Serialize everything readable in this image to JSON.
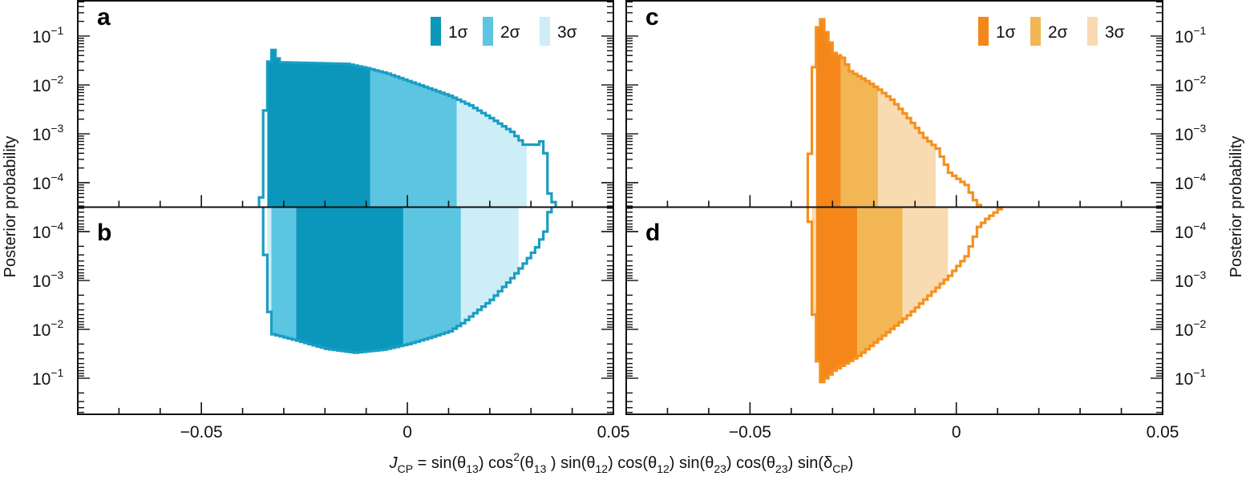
{
  "chart_data": [
    {
      "panel": "a",
      "type": "histogram",
      "yscale": "log",
      "orientation": "up",
      "xlim": [
        -0.08,
        0.05
      ],
      "ylim": [
        3e-05,
        0.5
      ],
      "bin_width": 0.001,
      "profile": [
        [
          -0.036,
          5e-05
        ],
        [
          -0.035,
          0.003
        ],
        [
          -0.034,
          0.03
        ],
        [
          -0.033,
          0.052
        ],
        [
          -0.032,
          0.035
        ],
        [
          -0.031,
          0.029
        ],
        [
          -0.015,
          0.027
        ],
        [
          -0.01,
          0.022
        ],
        [
          -0.005,
          0.017
        ],
        [
          0,
          0.012
        ],
        [
          0.005,
          0.0085
        ],
        [
          0.01,
          0.006
        ],
        [
          0.015,
          0.0038
        ],
        [
          0.02,
          0.0021
        ],
        [
          0.025,
          0.0011
        ],
        [
          0.028,
          0.0006
        ],
        [
          0.031,
          0.0006
        ],
        [
          0.032,
          0.0007
        ],
        [
          0.033,
          0.0004
        ],
        [
          0.034,
          6e-05
        ],
        [
          0.035,
          4e-05
        ],
        [
          0.036,
          4e-05
        ]
      ],
      "intervals": [
        {
          "level": "1σ",
          "range": [
            -0.034,
            -0.009
          ]
        },
        {
          "level": "2σ",
          "range": [
            -0.009,
            0.012
          ]
        },
        {
          "level": "3σ",
          "range": [
            0.012,
            0.029
          ]
        }
      ],
      "colors": {
        "1σ": "#0a97bb",
        "2σ": "#5cc6e2",
        "3σ": "#cdeef6",
        "outline": "#1a9dc4"
      }
    },
    {
      "panel": "b",
      "type": "histogram",
      "yscale": "log",
      "orientation": "down",
      "xlim": [
        -0.08,
        0.05
      ],
      "ylim": [
        3e-05,
        0.5
      ],
      "bin_width": 0.001,
      "profile": [
        [
          -0.035,
          0.0003
        ],
        [
          -0.034,
          0.0044
        ],
        [
          -0.033,
          0.0126
        ],
        [
          -0.027,
          0.017
        ],
        [
          -0.02,
          0.025
        ],
        [
          -0.013,
          0.03
        ],
        [
          -0.006,
          0.026
        ],
        [
          0,
          0.02
        ],
        [
          0.005,
          0.015
        ],
        [
          0.01,
          0.011
        ],
        [
          0.013,
          0.0075
        ],
        [
          0.02,
          0.0025
        ],
        [
          0.025,
          0.0009
        ],
        [
          0.028,
          0.00045
        ],
        [
          0.031,
          0.00021
        ],
        [
          0.033,
          0.0001
        ],
        [
          0.034,
          4e-05
        ],
        [
          0.035,
          4e-05
        ]
      ],
      "intervals": [
        {
          "level": "3σ",
          "range": [
            -0.034,
            -0.033
          ]
        },
        {
          "level": "2σ",
          "range": [
            -0.033,
            -0.027
          ]
        },
        {
          "level": "1σ",
          "range": [
            -0.027,
            -0.001
          ]
        },
        {
          "level": "2σ",
          "range": [
            -0.001,
            0.013
          ]
        },
        {
          "level": "3σ",
          "range": [
            0.013,
            0.027
          ]
        }
      ],
      "colors": {
        "1σ": "#0a97bb",
        "2σ": "#5cc6e2",
        "3σ": "#cdeef6",
        "outline": "#1a9dc4"
      }
    },
    {
      "panel": "c",
      "type": "histogram",
      "yscale": "log",
      "orientation": "up",
      "xlim": [
        -0.08,
        0.05
      ],
      "ylim": [
        3e-05,
        0.5
      ],
      "bin_width": 0.001,
      "profile": [
        [
          -0.036,
          0.00039
        ],
        [
          -0.035,
          0.023
        ],
        [
          -0.034,
          0.15
        ],
        [
          -0.033,
          0.22
        ],
        [
          -0.032,
          0.12
        ],
        [
          -0.03,
          0.045
        ],
        [
          -0.028,
          0.036
        ],
        [
          -0.026,
          0.019
        ],
        [
          -0.022,
          0.012
        ],
        [
          -0.019,
          0.008
        ],
        [
          -0.016,
          0.005
        ],
        [
          -0.012,
          0.0021
        ],
        [
          -0.008,
          0.00083
        ],
        [
          -0.005,
          0.0005
        ],
        [
          -0.002,
          0.00016
        ],
        [
          0.002,
          9e-05
        ],
        [
          0.004,
          4.4e-05
        ],
        [
          0.005,
          3.5e-05
        ],
        [
          0.006,
          3.5e-05
        ]
      ],
      "intervals": [
        {
          "level": "1σ",
          "range": [
            -0.034,
            -0.028
          ]
        },
        {
          "level": "2σ",
          "range": [
            -0.028,
            -0.019
          ]
        },
        {
          "level": "3σ",
          "range": [
            -0.019,
            -0.005
          ]
        }
      ],
      "colors": {
        "1σ": "#f5871a",
        "2σ": "#f2b655",
        "3σ": "#f9dbb2",
        "outline": "#f5901e"
      }
    },
    {
      "panel": "d",
      "type": "histogram",
      "yscale": "log",
      "orientation": "down",
      "xlim": [
        -0.08,
        0.05
      ],
      "ylim": [
        3e-05,
        0.5
      ],
      "bin_width": 0.001,
      "profile": [
        [
          -0.036,
          6.3e-05
        ],
        [
          -0.035,
          0.005
        ],
        [
          -0.034,
          0.045
        ],
        [
          -0.033,
          0.12
        ],
        [
          -0.03,
          0.07
        ],
        [
          -0.024,
          0.035
        ],
        [
          -0.018,
          0.0135
        ],
        [
          -0.012,
          0.0052
        ],
        [
          -0.006,
          0.0017
        ],
        [
          -0.002,
          0.0008
        ],
        [
          0.002,
          0.00032
        ],
        [
          0.005,
          8e-05
        ],
        [
          0.007,
          5.5e-05
        ],
        [
          0.01,
          3.5e-05
        ],
        [
          0.011,
          3.5e-05
        ]
      ],
      "intervals": [
        {
          "level": "3σ",
          "range": [
            -0.035,
            -0.034
          ]
        },
        {
          "level": "1σ",
          "range": [
            -0.034,
            -0.024
          ]
        },
        {
          "level": "2σ",
          "range": [
            -0.024,
            -0.013
          ]
        },
        {
          "level": "3σ",
          "range": [
            -0.013,
            -0.002
          ]
        }
      ],
      "colors": {
        "1σ": "#f5871a",
        "2σ": "#f2b655",
        "3σ": "#f9dbb2",
        "outline": "#f5901e"
      }
    }
  ],
  "panel_letters": {
    "a": "a",
    "b": "b",
    "c": "c",
    "d": "d"
  },
  "legend": {
    "items": [
      "1σ",
      "2σ",
      "3σ"
    ],
    "blue_colors": [
      "#0a97bb",
      "#5cc6e2",
      "#cdeef6"
    ],
    "orange_colors": [
      "#f5871a",
      "#f2b655",
      "#f9dbb2"
    ],
    "placement": "top-right"
  },
  "x_tick_labels": [
    "−0.05",
    "0",
    "0.05"
  ],
  "x_tick_values": [
    -0.05,
    0,
    0.05
  ],
  "y_tick_labels_top": [
    {
      "base": "10",
      "exp": "−1"
    },
    {
      "base": "10",
      "exp": "−2"
    },
    {
      "base": "10",
      "exp": "−3"
    },
    {
      "base": "10",
      "exp": "−4"
    }
  ],
  "y_tick_labels_bottom": [
    {
      "base": "10",
      "exp": "−4"
    },
    {
      "base": "10",
      "exp": "−3"
    },
    {
      "base": "10",
      "exp": "−2"
    },
    {
      "base": "10",
      "exp": "−1"
    }
  ],
  "ylabel": "Posterior probability",
  "xlabel": "J_{CP} = sin(θ_{13}) cos^{2}(θ_{13} ) sin(θ_{12}) cos(θ_{12}) sin(θ_{23}) cos(θ_{23}) sin(δ_{CP})"
}
